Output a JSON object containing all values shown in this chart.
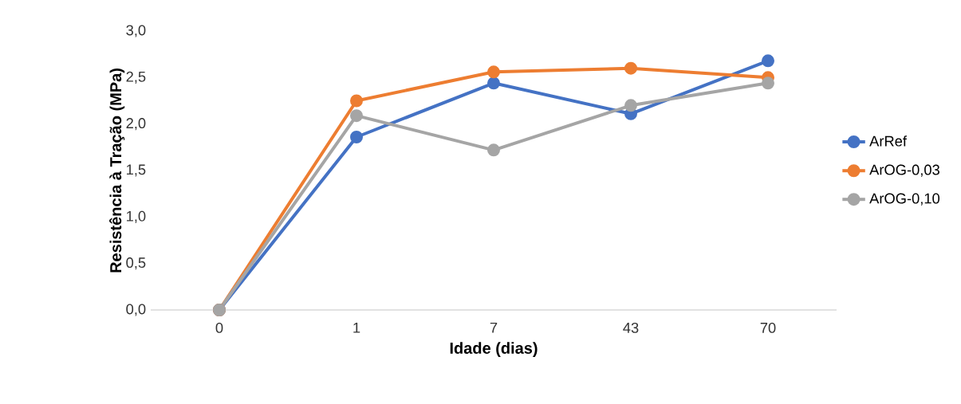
{
  "chart_data": {
    "type": "line",
    "xlabel": "Idade (dias)",
    "ylabel": "Resistência à Tração (MPa)",
    "categories": [
      "0",
      "1",
      "7",
      "43",
      "70"
    ],
    "series": [
      {
        "name": "ArRef",
        "color": "#4472c4",
        "values": [
          0,
          1.86,
          2.44,
          2.11,
          2.68
        ]
      },
      {
        "name": "ArOG-0,03",
        "color": "#ed7d31",
        "values": [
          0,
          2.25,
          2.56,
          2.6,
          2.5
        ]
      },
      {
        "name": "ArOG-0,10",
        "color": "#a5a5a5",
        "values": [
          0,
          2.09,
          1.72,
          2.2,
          2.44
        ]
      }
    ],
    "ylim": [
      0,
      3
    ],
    "yticks": [
      {
        "value": 0,
        "label": "0,0"
      },
      {
        "value": 0.5,
        "label": "0,5"
      },
      {
        "value": 1,
        "label": "1,0"
      },
      {
        "value": 1.5,
        "label": "1,5"
      },
      {
        "value": 2,
        "label": "2,0"
      },
      {
        "value": 2.5,
        "label": "2,5"
      },
      {
        "value": 3,
        "label": "3,0"
      }
    ],
    "grid": false,
    "legend": "right",
    "marker": "circle",
    "line_style": "solid"
  }
}
